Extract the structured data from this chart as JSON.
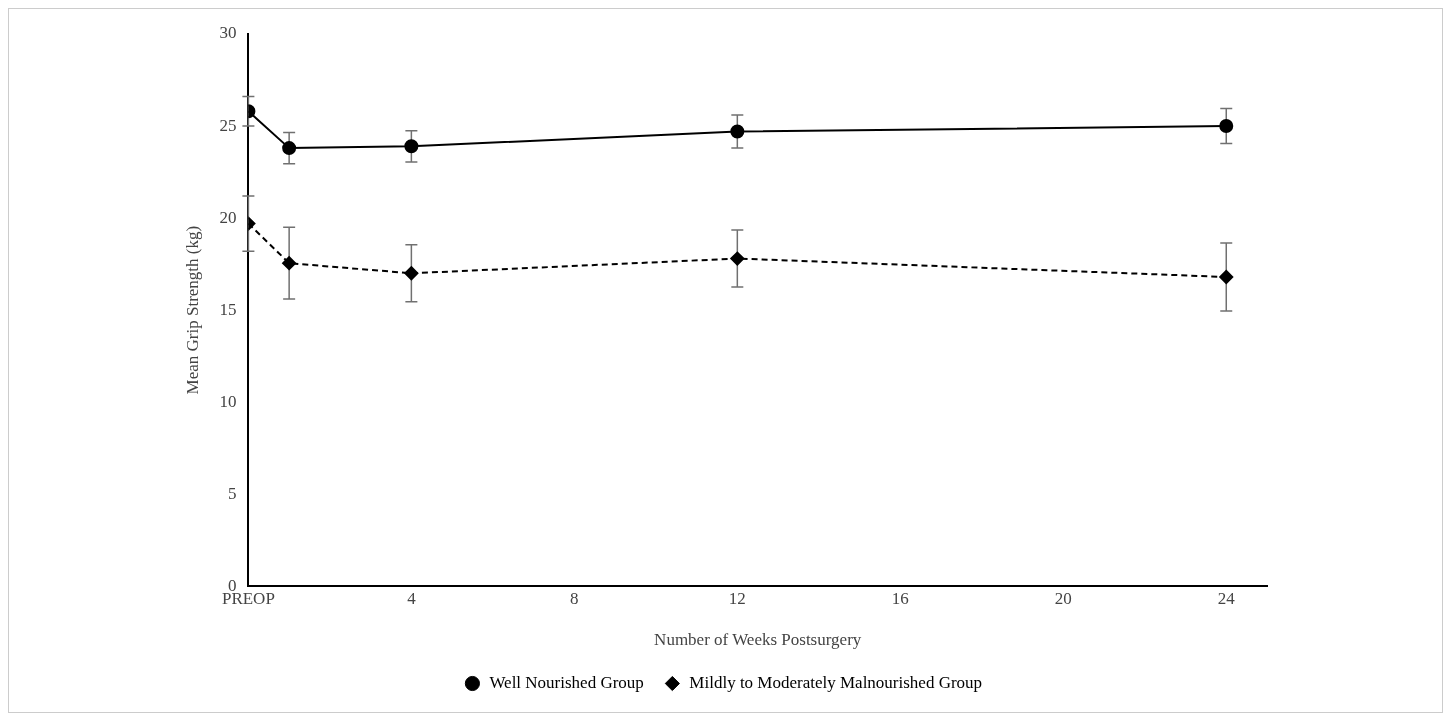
{
  "chart_data": {
    "type": "line",
    "xlabel": "Number of Weeks Postsurgery",
    "ylabel": "Mean Grip Strength (kg)",
    "xlim": [
      0,
      25
    ],
    "xticks": [
      {
        "value": 0,
        "label": "PREOP"
      },
      4,
      8,
      12,
      16,
      20,
      24
    ],
    "ylim": [
      0,
      30
    ],
    "yticks": [
      0,
      5,
      10,
      15,
      20,
      25,
      30
    ],
    "grid": false,
    "legend": "bottom",
    "x": [
      0,
      1,
      4,
      12,
      24
    ],
    "series": [
      {
        "name": "Well Nourished Group",
        "color": "#000000",
        "marker": "circle",
        "line_style": "solid",
        "values": [
          25.8,
          23.8,
          23.9,
          24.7,
          25.0
        ],
        "errors": [
          0.8,
          0.85,
          0.85,
          0.9,
          0.95
        ]
      },
      {
        "name": "Mildly to Moderately Malnourished Group",
        "color": "#000000",
        "marker": "diamond",
        "line_style": "dashed",
        "values": [
          19.7,
          17.55,
          17.0,
          17.8,
          16.8
        ],
        "errors": [
          1.5,
          1.95,
          1.55,
          1.55,
          1.85
        ]
      }
    ]
  }
}
